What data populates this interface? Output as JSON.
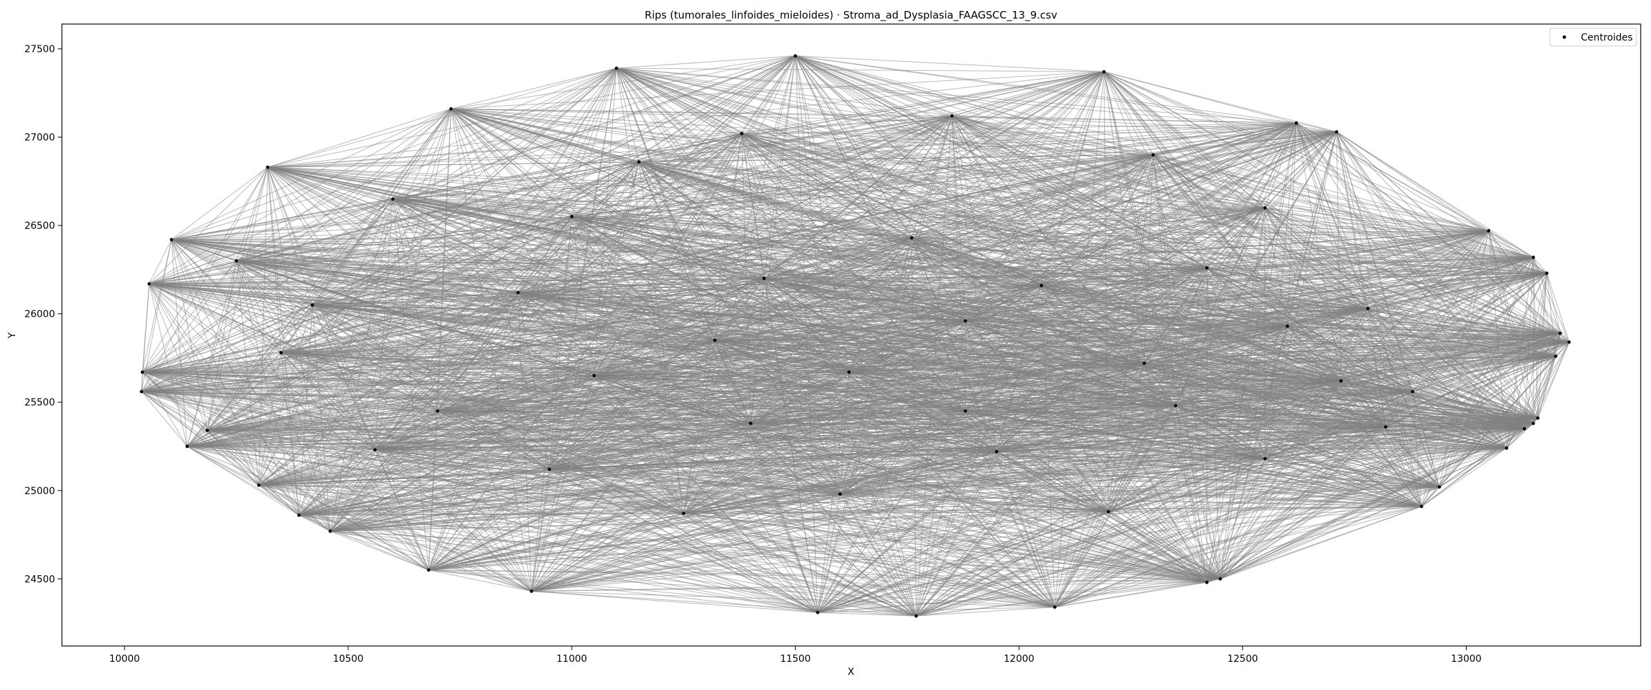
{
  "chart_data": {
    "type": "scatter",
    "title": "Rips (tumorales_linfoides_mieloides) · Stroma_ad_Dysplasia_FAAGSCC_13_9.csv",
    "xlabel": "X",
    "ylabel": "Y",
    "xlim": [
      9860,
      13390
    ],
    "ylim": [
      24120,
      27640
    ],
    "xticks": [
      10000,
      10500,
      11000,
      11500,
      12000,
      12500,
      13000
    ],
    "yticks": [
      24500,
      25000,
      25500,
      26000,
      26500,
      27000,
      27500
    ],
    "grid": false,
    "legend": {
      "position": "top-right",
      "entries": [
        "Centroides"
      ]
    },
    "colors": {
      "points": "#000000",
      "edges": "#808080"
    },
    "series": [
      {
        "name": "Centroides",
        "points": [
          [
            10038,
            25560
          ],
          [
            10040,
            25670
          ],
          [
            10055,
            26170
          ],
          [
            10105,
            26420
          ],
          [
            10140,
            25250
          ],
          [
            10185,
            25340
          ],
          [
            10300,
            25030
          ],
          [
            10320,
            26830
          ],
          [
            10390,
            24860
          ],
          [
            10460,
            24770
          ],
          [
            10730,
            27160
          ],
          [
            10680,
            24550
          ],
          [
            10910,
            24430
          ],
          [
            11100,
            27390
          ],
          [
            11500,
            27460
          ],
          [
            11550,
            24310
          ],
          [
            11770,
            24290
          ],
          [
            12080,
            24340
          ],
          [
            12190,
            27370
          ],
          [
            12420,
            24480
          ],
          [
            12450,
            24500
          ],
          [
            12620,
            27080
          ],
          [
            12710,
            27030
          ],
          [
            12900,
            24910
          ],
          [
            12940,
            25020
          ],
          [
            13050,
            26470
          ],
          [
            13090,
            25240
          ],
          [
            13130,
            25350
          ],
          [
            13150,
            26320
          ],
          [
            13150,
            25380
          ],
          [
            13160,
            25410
          ],
          [
            13180,
            26230
          ],
          [
            13200,
            25760
          ],
          [
            13210,
            25890
          ],
          [
            13230,
            25840
          ],
          [
            10250,
            26300
          ],
          [
            10420,
            26050
          ],
          [
            10600,
            26650
          ],
          [
            10880,
            26120
          ],
          [
            11150,
            26860
          ],
          [
            11320,
            25850
          ],
          [
            11430,
            26200
          ],
          [
            11620,
            25670
          ],
          [
            11760,
            26430
          ],
          [
            11880,
            25960
          ],
          [
            12050,
            26160
          ],
          [
            12280,
            25720
          ],
          [
            12420,
            26260
          ],
          [
            12600,
            25930
          ],
          [
            12780,
            26030
          ],
          [
            12880,
            25560
          ],
          [
            10700,
            25450
          ],
          [
            10950,
            25120
          ],
          [
            11250,
            24870
          ],
          [
            11600,
            24980
          ],
          [
            11950,
            25220
          ],
          [
            12200,
            24880
          ],
          [
            12550,
            25180
          ],
          [
            12820,
            25360
          ],
          [
            10350,
            25780
          ],
          [
            10560,
            25230
          ],
          [
            11050,
            25650
          ],
          [
            11400,
            25380
          ],
          [
            11880,
            25450
          ],
          [
            12350,
            25480
          ],
          [
            12720,
            25620
          ],
          [
            11000,
            26550
          ],
          [
            11380,
            27020
          ],
          [
            11850,
            27120
          ],
          [
            12300,
            26900
          ],
          [
            12550,
            26600
          ]
        ]
      }
    ]
  }
}
